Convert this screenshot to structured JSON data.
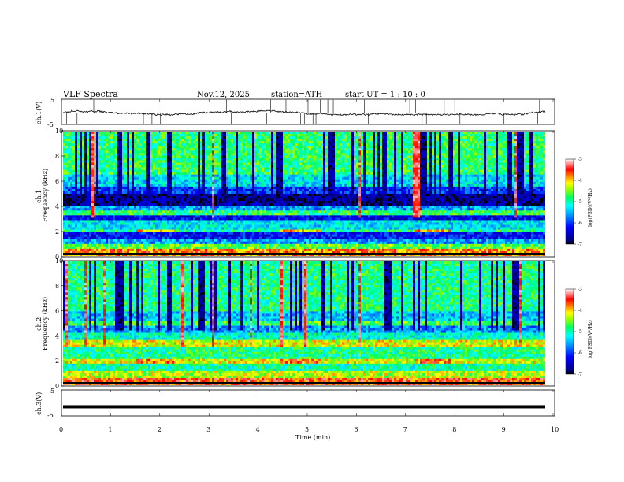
{
  "header": {
    "title": "VLF  Spectra",
    "date": "Nov.12, 2025",
    "station": "station=ATH",
    "start": "start  UT  =    1  : 10 : 0"
  },
  "chart_data": [
    {
      "type": "line",
      "panel": "ch1-waveform",
      "ylabel": "ch.1(V)",
      "ylim": [
        -5,
        5
      ],
      "yticks": [
        "5",
        "-5"
      ],
      "xlim": [
        0,
        10
      ],
      "description_series": "waveform amplitude around -0.5 V with spiky bursts"
    },
    {
      "type": "heatmap",
      "panel": "ch1-spectrogram",
      "ylabel_channel": "ch.1",
      "ylabel": "Frequency  (kHz)",
      "ylim": [
        0,
        10
      ],
      "yticks": [
        "0",
        "2",
        "4",
        "6",
        "8",
        "10"
      ],
      "xlim": [
        0,
        9.8
      ],
      "colorbar": {
        "label": "log(PSD)(V²/Hz)",
        "range": [
          -7,
          -3
        ],
        "ticks": [
          "-3",
          "-4",
          "-5",
          "-6",
          "-7"
        ]
      }
    },
    {
      "type": "heatmap",
      "panel": "ch2-spectrogram",
      "ylabel_channel": "ch.2",
      "ylabel": "Frequency  (kHz)",
      "ylim": [
        0,
        10
      ],
      "yticks": [
        "0",
        "2",
        "4",
        "6",
        "8",
        "10"
      ],
      "xlim": [
        0,
        9.8
      ],
      "colorbar": {
        "label": "log(PSD)(V²/Hz)",
        "range": [
          -7,
          -3
        ],
        "ticks": [
          "-3",
          "-4",
          "-5",
          "-6",
          "-7"
        ]
      }
    },
    {
      "type": "line",
      "panel": "ch3-waveform",
      "ylabel": "ch.3(V)",
      "ylim": [
        -5,
        5
      ],
      "yticks": [
        "5",
        "-5"
      ],
      "xlim": [
        0,
        10
      ],
      "description_series": "flat dense trace near -1.5 V"
    }
  ],
  "xaxis": {
    "label": "Time  (min)",
    "ticks": [
      "0",
      "1",
      "2",
      "3",
      "4",
      "5",
      "6",
      "7",
      "8",
      "9",
      "10"
    ]
  }
}
